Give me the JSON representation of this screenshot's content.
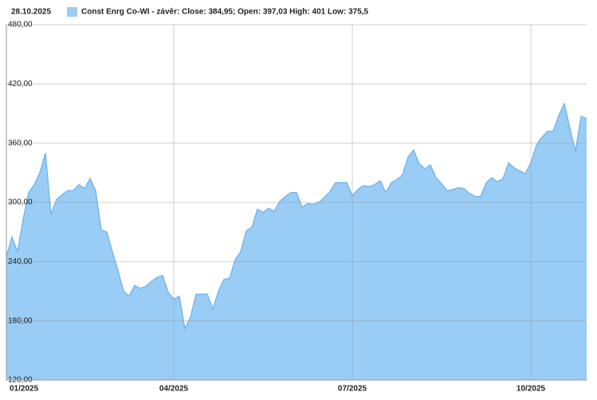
{
  "chart_data": {
    "type": "area",
    "date": "28.10.2025",
    "categories": [
      "01/2025",
      null,
      null,
      null,
      null,
      null,
      null,
      null,
      null,
      null,
      null,
      null,
      null,
      null,
      null,
      null,
      null,
      null,
      null,
      null,
      null,
      null,
      null,
      null,
      null,
      null,
      null,
      null,
      null,
      null,
      "04/2025",
      null,
      null,
      null,
      null,
      null,
      null,
      null,
      null,
      null,
      null,
      null,
      null,
      null,
      null,
      null,
      null,
      null,
      null,
      null,
      null,
      null,
      null,
      null,
      null,
      null,
      null,
      null,
      null,
      null,
      null,
      null,
      "07/2025",
      null,
      null,
      null,
      null,
      null,
      null,
      null,
      null,
      null,
      null,
      null,
      null,
      null,
      null,
      null,
      null,
      null,
      null,
      null,
      null,
      null,
      null,
      null,
      null,
      null,
      null,
      null,
      null,
      null,
      null,
      null,
      "10/2025",
      null,
      null,
      null,
      null,
      null,
      null,
      null,
      null,
      null,
      null
    ],
    "series": [
      {
        "name": "Const Enrg Co-WI - závěr: Close: 384,95; Open: 397,03 High: 401 Low: 375,5",
        "color": "#99cdf6",
        "line_color": "#6fb2ea",
        "values": [
          245,
          265,
          250,
          283,
          310,
          318,
          330,
          350,
          288,
          303,
          308,
          312,
          312,
          318,
          314,
          324,
          312,
          272,
          270,
          250,
          231,
          210,
          205,
          216,
          213,
          215,
          220,
          224,
          226,
          209,
          202,
          205,
          172,
          184,
          207,
          207,
          207,
          192,
          210,
          222,
          223,
          242,
          250,
          271,
          275,
          293,
          290,
          294,
          291,
          301,
          306,
          310,
          310,
          295,
          299,
          298,
          300,
          305,
          311,
          320,
          320,
          320,
          307,
          313,
          317,
          316,
          318,
          322,
          310,
          320,
          323,
          328,
          346,
          353,
          339,
          334,
          338,
          325,
          319,
          312,
          313,
          315,
          314,
          309,
          306,
          306,
          320,
          325,
          321,
          324,
          340,
          335,
          332,
          329,
          340,
          358,
          366,
          372,
          372,
          388,
          400,
          375,
          352,
          387,
          385
        ]
      }
    ],
    "ylim": [
      120,
      480
    ],
    "yticks": [
      {
        "value": 120,
        "label": "120,00"
      },
      {
        "value": 180,
        "label": "180,00"
      },
      {
        "value": 240,
        "label": "240,00"
      },
      {
        "value": 300,
        "label": "300,00"
      },
      {
        "value": 360,
        "label": "360,00"
      },
      {
        "value": 420,
        "label": "420,00"
      },
      {
        "value": 480,
        "label": "480,00"
      }
    ],
    "grid": true
  }
}
